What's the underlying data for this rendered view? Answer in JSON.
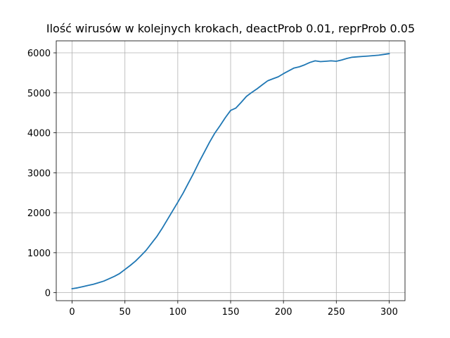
{
  "chart_data": {
    "type": "line",
    "title": "Ilość wirusów w kolejnych krokach, deactProb 0.01, reprProb 0.05",
    "xlabel": "",
    "ylabel": "",
    "xlim": [
      -15,
      315
    ],
    "ylim": [
      -200,
      6300
    ],
    "xticks": [
      0,
      50,
      100,
      150,
      200,
      250,
      300
    ],
    "yticks": [
      0,
      1000,
      2000,
      3000,
      4000,
      5000,
      6000
    ],
    "grid": true,
    "color": "#1f77b4",
    "series": [
      {
        "x": [
          0,
          5,
          10,
          15,
          20,
          25,
          30,
          35,
          40,
          45,
          50,
          55,
          60,
          65,
          70,
          75,
          80,
          85,
          90,
          95,
          100,
          105,
          110,
          115,
          120,
          125,
          130,
          135,
          140,
          145,
          150,
          155,
          160,
          165,
          170,
          175,
          180,
          185,
          190,
          195,
          200,
          205,
          210,
          215,
          220,
          225,
          230,
          235,
          240,
          245,
          250,
          255,
          260,
          265,
          270,
          275,
          280,
          285,
          290,
          295,
          300
        ],
        "y": [
          100,
          120,
          150,
          180,
          210,
          250,
          290,
          350,
          410,
          480,
          580,
          680,
          790,
          920,
          1060,
          1230,
          1400,
          1600,
          1820,
          2040,
          2260,
          2490,
          2740,
          2990,
          3260,
          3510,
          3760,
          3990,
          4180,
          4380,
          4560,
          4620,
          4760,
          4910,
          5010,
          5100,
          5200,
          5300,
          5350,
          5400,
          5480,
          5550,
          5620,
          5650,
          5700,
          5760,
          5800,
          5780,
          5790,
          5800,
          5790,
          5820,
          5860,
          5890,
          5900,
          5910,
          5920,
          5930,
          5940,
          5960,
          5980
        ]
      }
    ]
  }
}
